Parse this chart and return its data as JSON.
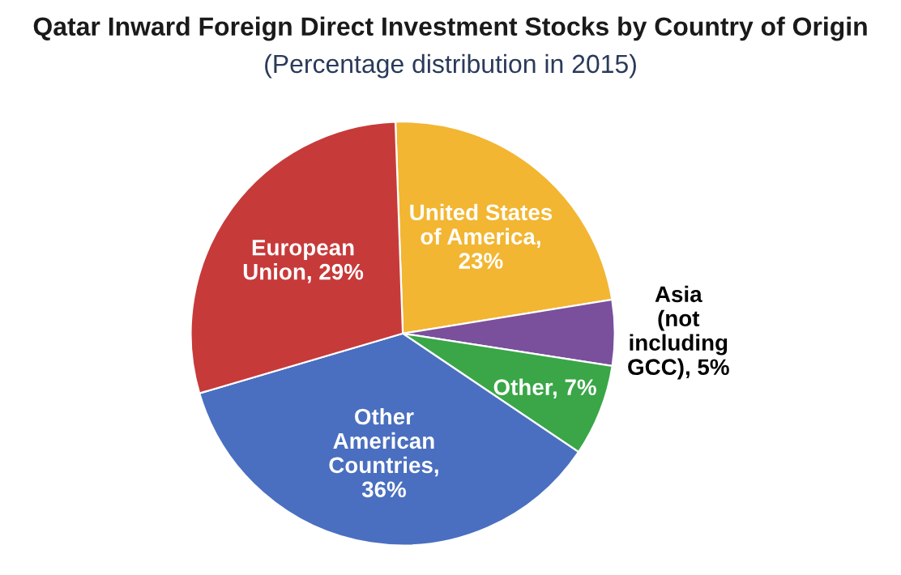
{
  "chart_data": {
    "type": "pie",
    "title": "Qatar Inward Foreign Direct Investment Stocks by Country of Origin",
    "subtitle": "(Percentage distribution in 2015)",
    "categories": [
      "United States\nof America,\n23%",
      "Asia\n(not\nincluding\nGCC), 5%",
      "Other, 7%",
      "Other\nAmerican\nCountries,\n36%",
      "European\nUnion, 29%"
    ],
    "values": [
      23,
      5,
      7,
      36,
      29
    ],
    "colors": [
      "#f2b632",
      "#7a4f9c",
      "#3aa647",
      "#4a6fc0",
      "#c73a3a"
    ],
    "legend": false
  }
}
